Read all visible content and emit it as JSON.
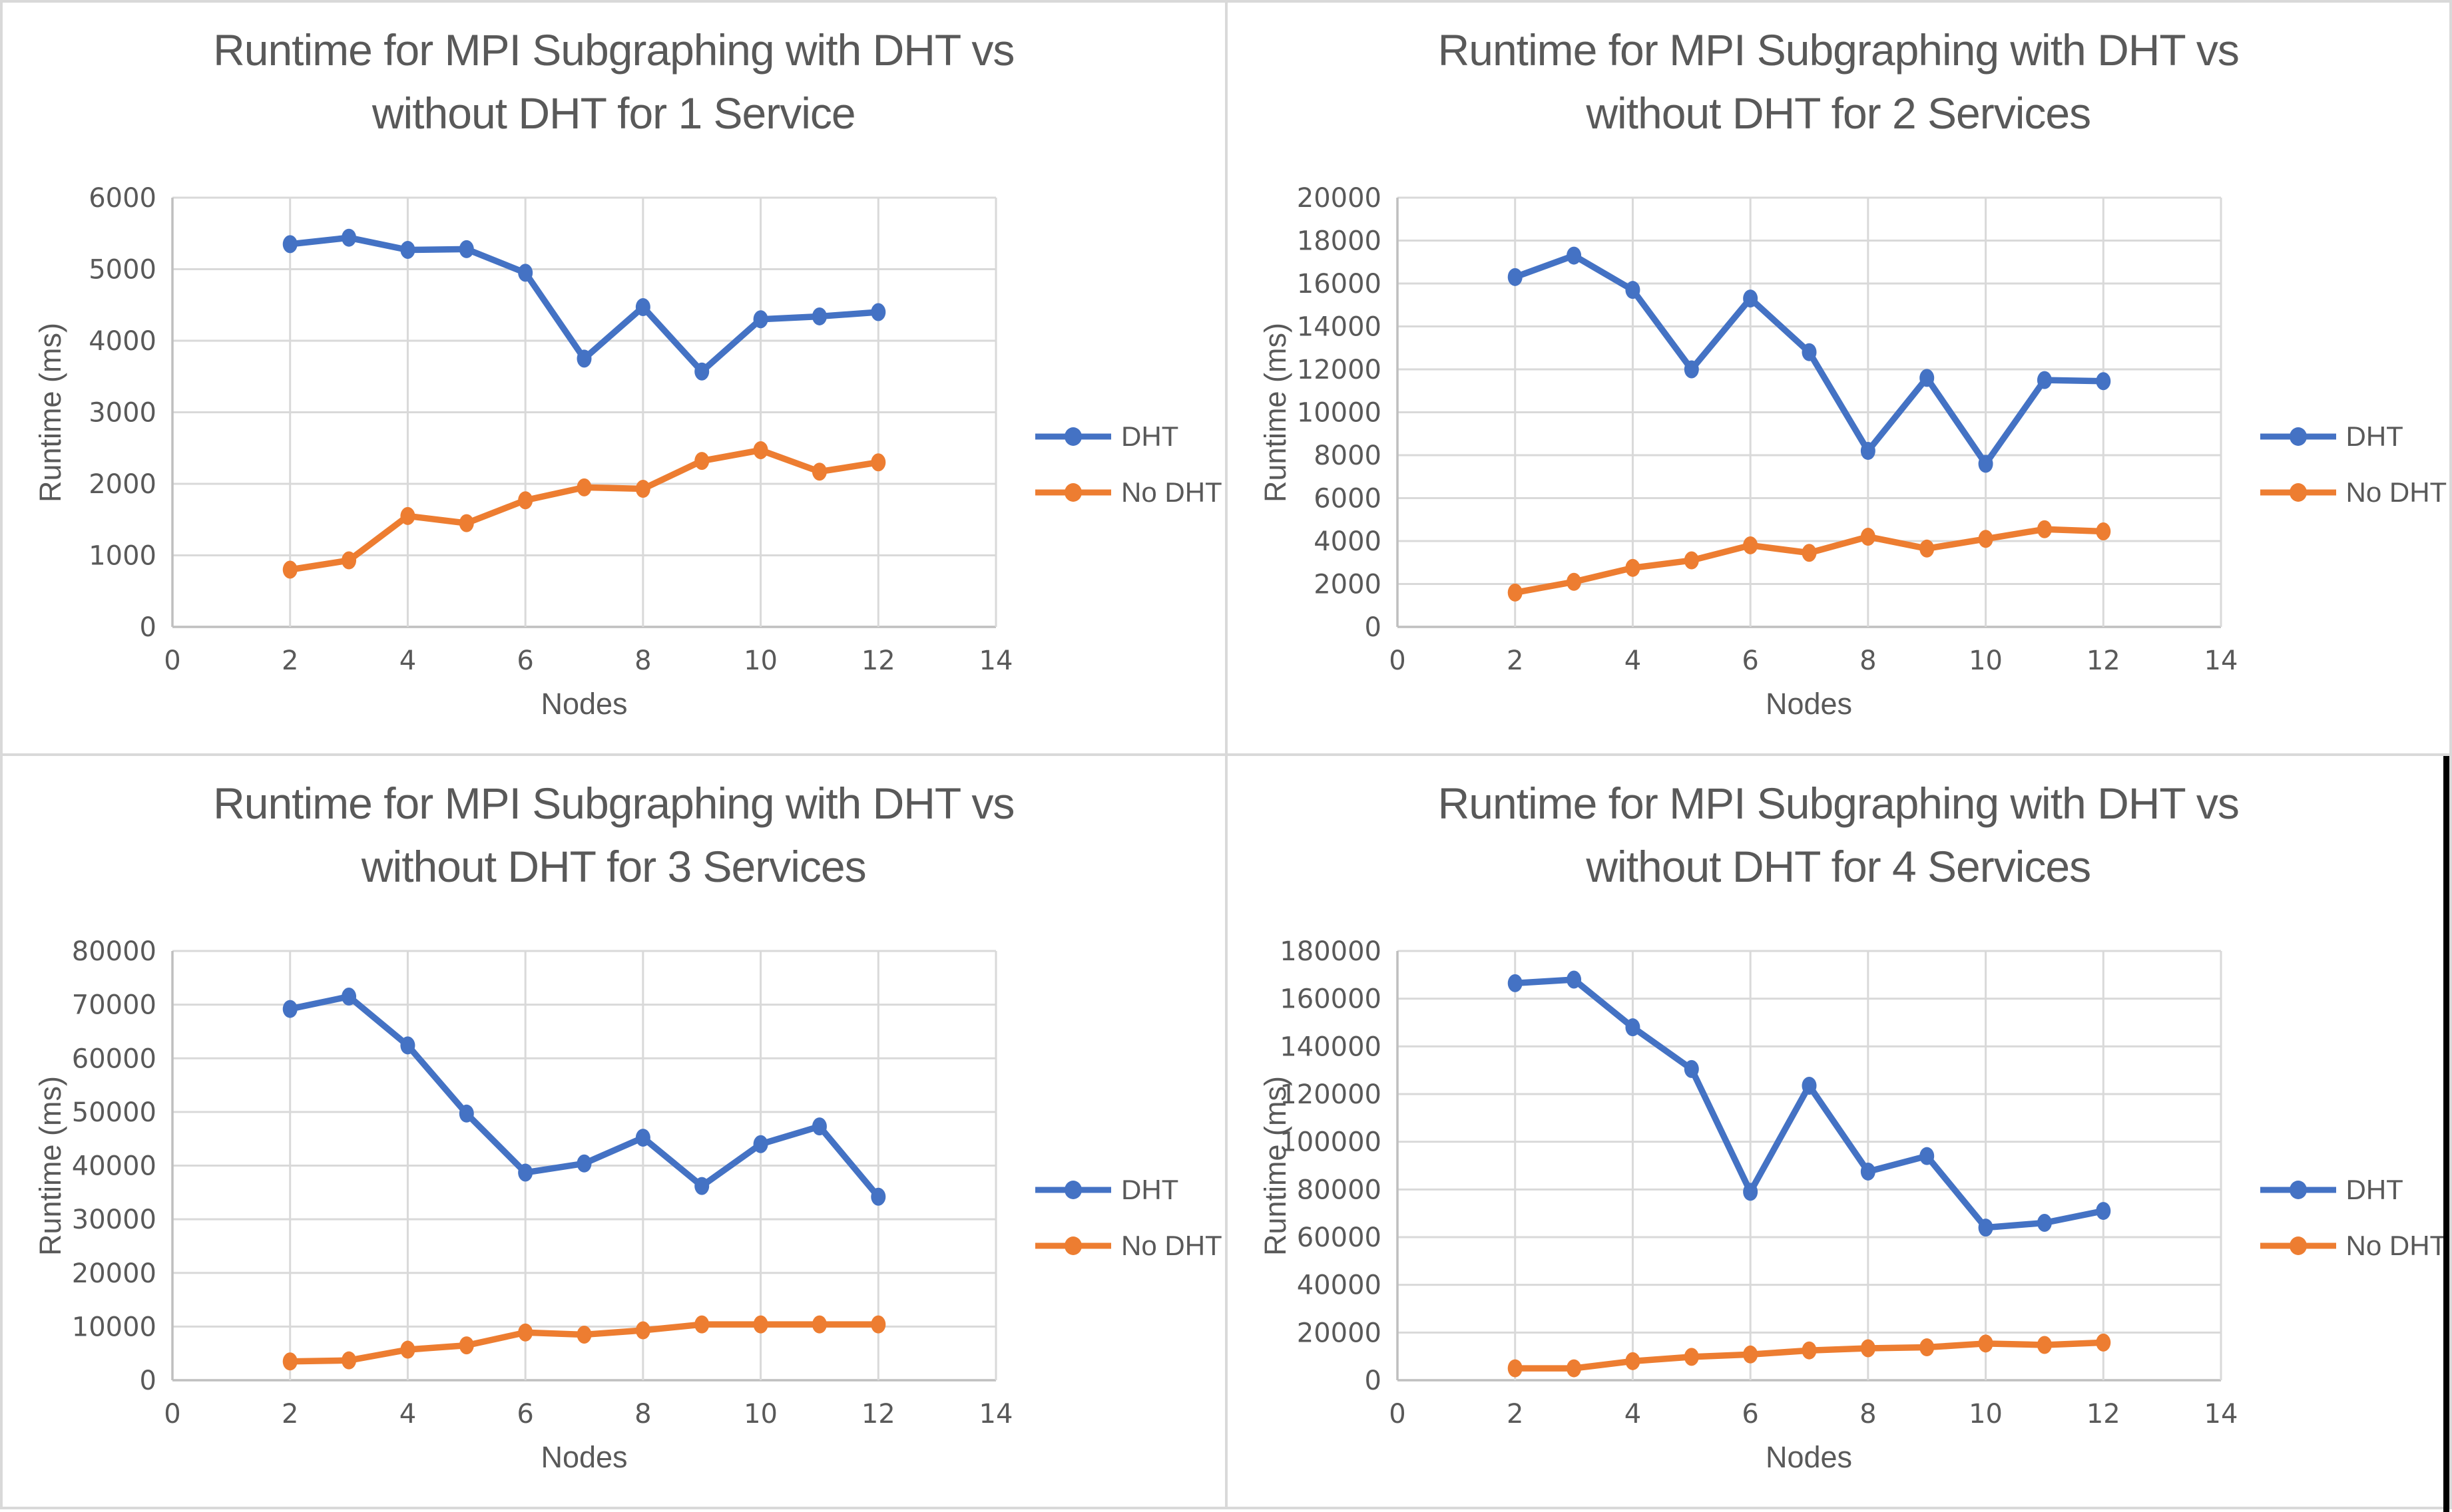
{
  "style": {
    "dht_color": "#4472C4",
    "no_dht_color": "#ED7D31",
    "grid_color": "#D9D9D9",
    "axis_color": "#BFBFBF",
    "text_color": "#595959",
    "background": "#FFFFFF",
    "divider_color": "#D9D9D9",
    "edge_bar_color": "#000000"
  },
  "chart_data": [
    {
      "type": "line",
      "title": "Runtime for MPI Subgraphing with DHT vs without DHT for 1 Service",
      "title_line1": "Runtime for MPI Subgraphing with DHT vs",
      "title_line2": "without DHT for 1 Service",
      "xlabel": "Nodes",
      "ylabel": "Runtime (ms)",
      "x": [
        2,
        3,
        4,
        5,
        6,
        7,
        8,
        9,
        10,
        11,
        12
      ],
      "xlim": [
        0,
        14
      ],
      "x_tick_step": 2,
      "ylim": [
        0,
        6000
      ],
      "y_tick_step": 1000,
      "grid": true,
      "legend_position": "right",
      "series": [
        {
          "name": "DHT",
          "color": "#4472C4",
          "values": [
            5350,
            5440,
            5270,
            5280,
            4950,
            3750,
            4470,
            3570,
            4300,
            4340,
            4400
          ]
        },
        {
          "name": "No DHT",
          "color": "#ED7D31",
          "values": [
            800,
            930,
            1550,
            1450,
            1770,
            1950,
            1930,
            2320,
            2470,
            2170,
            2300
          ]
        }
      ]
    },
    {
      "type": "line",
      "title": "Runtime for MPI Subgraphing with DHT vs without DHT for 2 Services",
      "title_line1": "Runtime for MPI Subgraphing with DHT vs",
      "title_line2": "without DHT for 2 Services",
      "xlabel": "Nodes",
      "ylabel": "Runtime (ms)",
      "x": [
        2,
        3,
        4,
        5,
        6,
        7,
        8,
        9,
        10,
        11,
        12
      ],
      "xlim": [
        0,
        14
      ],
      "x_tick_step": 2,
      "ylim": [
        0,
        20000
      ],
      "y_tick_step": 2000,
      "grid": true,
      "legend_position": "right",
      "series": [
        {
          "name": "DHT",
          "color": "#4472C4",
          "values": [
            16300,
            17300,
            15700,
            12000,
            15300,
            12800,
            8200,
            11600,
            7600,
            11500,
            11450
          ]
        },
        {
          "name": "No DHT",
          "color": "#ED7D31",
          "values": [
            1600,
            2100,
            2750,
            3100,
            3800,
            3450,
            4200,
            3650,
            4100,
            4550,
            4450
          ]
        }
      ]
    },
    {
      "type": "line",
      "title": "Runtime for MPI Subgraphing with DHT vs without DHT for 3 Services",
      "title_line1": "Runtime for MPI Subgraphing with DHT vs",
      "title_line2": "without DHT for 3 Services",
      "xlabel": "Nodes",
      "ylabel": "Runtime (ms)",
      "x": [
        2,
        3,
        4,
        5,
        6,
        7,
        8,
        9,
        10,
        11,
        12
      ],
      "xlim": [
        0,
        14
      ],
      "x_tick_step": 2,
      "ylim": [
        0,
        80000
      ],
      "y_tick_step": 10000,
      "grid": true,
      "legend_position": "right",
      "series": [
        {
          "name": "DHT",
          "color": "#4472C4",
          "values": [
            69200,
            71500,
            62400,
            49700,
            38700,
            40400,
            45200,
            36200,
            44000,
            47300,
            34200
          ]
        },
        {
          "name": "No DHT",
          "color": "#ED7D31",
          "values": [
            3500,
            3700,
            5700,
            6500,
            8900,
            8500,
            9300,
            10400,
            10400,
            10400,
            10400
          ]
        }
      ]
    },
    {
      "type": "line",
      "title": "Runtime for MPI Subgraphing with DHT vs without DHT for 4 Services",
      "title_line1": "Runtime for MPI Subgraphing with DHT vs",
      "title_line2": "without DHT for 4 Services",
      "xlabel": "Nodes",
      "ylabel": "Runtime (ms)",
      "x": [
        2,
        3,
        4,
        5,
        6,
        7,
        8,
        9,
        10,
        11,
        12
      ],
      "xlim": [
        0,
        14
      ],
      "x_tick_step": 2,
      "ylim": [
        0,
        180000
      ],
      "y_tick_step": 20000,
      "grid": true,
      "legend_position": "right",
      "series": [
        {
          "name": "DHT",
          "color": "#4472C4",
          "values": [
            166500,
            168000,
            148000,
            130500,
            79000,
            123500,
            87500,
            94000,
            64000,
            66000,
            71000
          ]
        },
        {
          "name": "No DHT",
          "color": "#ED7D31",
          "values": [
            5000,
            5000,
            8000,
            9800,
            10800,
            12500,
            13400,
            13800,
            15400,
            14800,
            15800
          ]
        }
      ]
    }
  ]
}
